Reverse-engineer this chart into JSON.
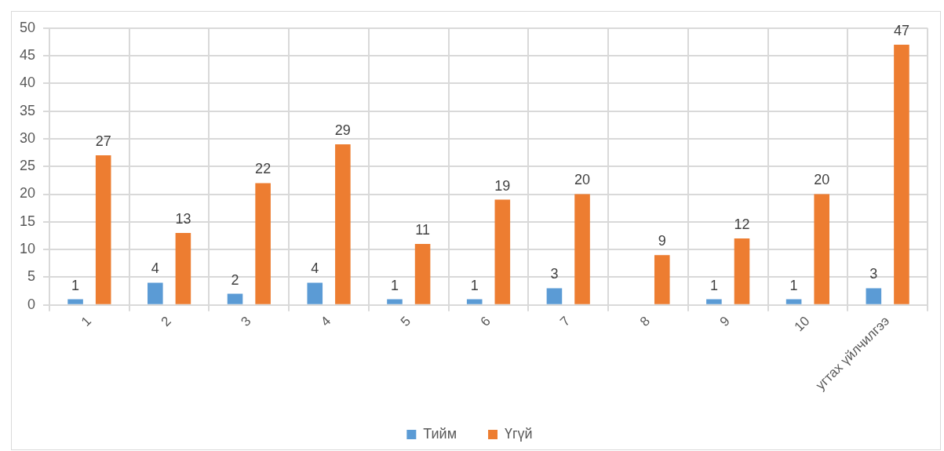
{
  "chart_data": {
    "type": "bar",
    "categories": [
      "1",
      "2",
      "3",
      "4",
      "5",
      "6",
      "7",
      "8",
      "9",
      "10",
      "угтах үйлчилгээ"
    ],
    "series": [
      {
        "name": "Тийм",
        "color": "#5b9bd5",
        "values": [
          1,
          4,
          2,
          4,
          1,
          1,
          3,
          null,
          1,
          1,
          3
        ]
      },
      {
        "name": "Үгүй",
        "color": "#ed7d31",
        "values": [
          27,
          13,
          22,
          29,
          11,
          19,
          20,
          9,
          12,
          20,
          47
        ]
      }
    ],
    "ylim": [
      0,
      50
    ],
    "yticks": [
      0,
      5,
      10,
      15,
      20,
      25,
      30,
      35,
      40,
      45,
      50
    ],
    "grid": true,
    "legend": "bottom",
    "data_labels": true
  }
}
